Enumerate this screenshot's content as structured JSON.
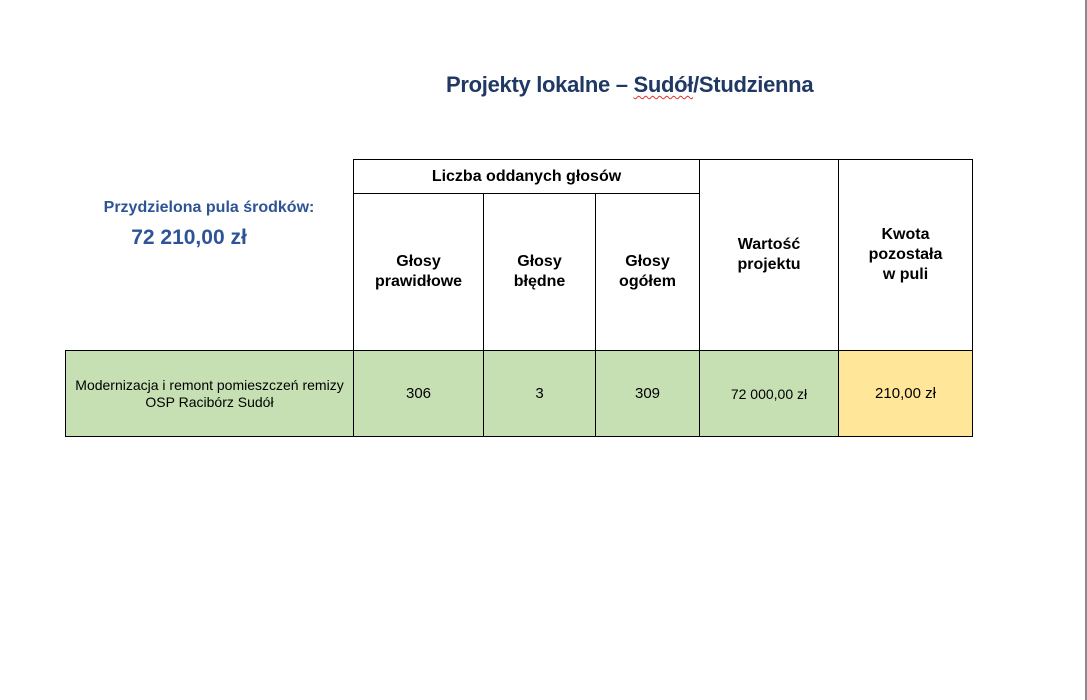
{
  "title": {
    "prefix": "Projekty lokalne – ",
    "underlined": "Sudół",
    "suffix": "/Studzienna"
  },
  "pool": {
    "label": "Przydzielona pula środków:",
    "value": "72 210,00 zł"
  },
  "table": {
    "group_header": "Liczba oddanych głosów",
    "headers": [
      "Głosy prawidłowe",
      "Głosy błędne",
      "Głosy ogółem",
      "Wartość projektu",
      "Kwota pozostała w puli"
    ],
    "rows": [
      {
        "project": "Modernizacja i remont pomieszczeń remizy OSP Racibórz Sudół",
        "valid": "306",
        "invalid": "3",
        "total": "309",
        "value": "72 000,00 zł",
        "remaining": "210,00 zł"
      }
    ]
  },
  "colors": {
    "title": "#1f3864",
    "pool": "#2f5496",
    "row_fill": "#c6e0b4",
    "remaining_fill": "#ffe699"
  }
}
